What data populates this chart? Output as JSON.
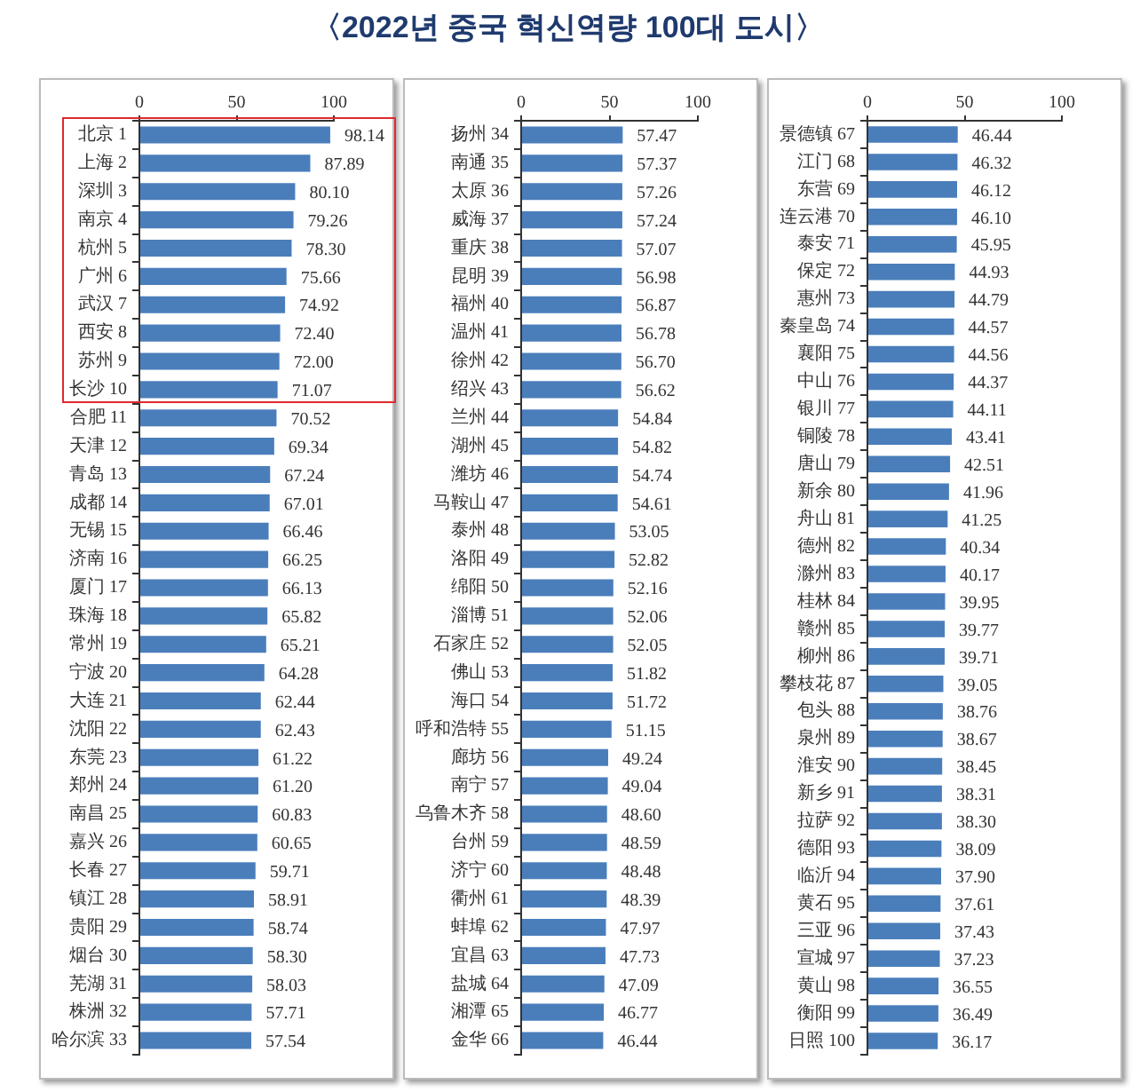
{
  "chart_data": [
    {
      "type": "bar",
      "orientation": "horizontal",
      "categories": [
        "北京 1",
        "上海 2",
        "深圳 3",
        "南京 4",
        "杭州 5",
        "广州 6",
        "武汉 7",
        "西安 8",
        "苏州 9",
        "长沙 10",
        "合肥 11",
        "天津 12",
        "青岛 13",
        "成都 14",
        "无锡 15",
        "济南 16",
        "厦门 17",
        "珠海 18",
        "常州 19",
        "宁波 20",
        "大连 21",
        "沈阳 22",
        "东莞 23",
        "郑州 24",
        "南昌 25",
        "嘉兴 26",
        "长春 27",
        "镇江 28",
        "贵阳 29",
        "烟台 30",
        "芜湖 31",
        "株洲 32",
        "哈尔滨 33"
      ],
      "values": [
        98.14,
        87.89,
        80.1,
        79.26,
        78.3,
        75.66,
        74.92,
        72.4,
        72.0,
        71.07,
        70.52,
        69.34,
        67.24,
        67.01,
        66.46,
        66.25,
        66.13,
        65.82,
        65.21,
        64.28,
        62.44,
        62.43,
        61.22,
        61.2,
        60.83,
        60.65,
        59.71,
        58.91,
        58.74,
        58.3,
        58.03,
        57.71,
        57.54
      ],
      "value_labels": [
        "98.14",
        "87.89",
        "80.10",
        "79.26",
        "78.30",
        "75.66",
        "74.92",
        "72.40",
        "72.00",
        "71.07",
        "70.52",
        "69.34",
        "67.24",
        "67.01",
        "66.46",
        "66.25",
        "66.13",
        "65.82",
        "65.21",
        "64.28",
        "62.44",
        "62.43",
        "61.22",
        "61.20",
        "60.83",
        "60.65",
        "59.71",
        "58.91",
        "58.74",
        "58.30",
        "58.03",
        "57.71",
        "57.54"
      ],
      "color": "#4a7ebb",
      "xlim": [
        0,
        100
      ],
      "xticks": [
        0,
        50,
        100
      ]
    },
    {
      "type": "bar",
      "orientation": "horizontal",
      "title": "〈2022년 중국 혁신역량 100대 도시〉",
      "categories": [
        "扬州 34",
        "南通 35",
        "太原 36",
        "威海 37",
        "重庆 38",
        "昆明 39",
        "福州 40",
        "温州 41",
        "徐州 42",
        "绍兴 43",
        "兰州 44",
        "湖州 45",
        "潍坊 46",
        "马鞍山 47",
        "泰州 48",
        "洛阳 49",
        "绵阳 50",
        "淄博 51",
        "石家庄 52",
        "佛山 53",
        "海口 54",
        "呼和浩特 55",
        "廊坊 56",
        "南宁 57",
        "乌鲁木齐 58",
        "台州 59",
        "济宁 60",
        "衢州 61",
        "蚌埠 62",
        "宜昌 63",
        "盐城 64",
        "湘潭 65",
        "金华 66"
      ],
      "values": [
        57.47,
        57.37,
        57.26,
        57.24,
        57.07,
        56.98,
        56.87,
        56.78,
        56.7,
        56.62,
        54.84,
        54.82,
        54.74,
        54.61,
        53.05,
        52.82,
        52.16,
        52.06,
        52.05,
        51.82,
        51.72,
        51.15,
        49.24,
        49.04,
        48.6,
        48.59,
        48.48,
        48.39,
        47.97,
        47.73,
        47.09,
        46.77,
        46.44
      ],
      "value_labels": [
        "57.47",
        "57.37",
        "57.26",
        "57.24",
        "57.07",
        "56.98",
        "56.87",
        "56.78",
        "56.70",
        "56.62",
        "54.84",
        "54.82",
        "54.74",
        "54.61",
        "53.05",
        "52.82",
        "52.16",
        "52.06",
        "52.05",
        "51.82",
        "51.72",
        "51.15",
        "49.24",
        "49.04",
        "48.60",
        "48.59",
        "48.48",
        "48.39",
        "47.97",
        "47.73",
        "47.09",
        "46.77",
        "46.44"
      ],
      "color": "#4a7ebb",
      "xlim": [
        0,
        100
      ],
      "xticks": [
        0,
        50,
        100
      ]
    },
    {
      "type": "bar",
      "orientation": "horizontal",
      "categories": [
        "景德镇 67",
        "江门 68",
        "东营 69",
        "连云港 70",
        "泰安 71",
        "保定 72",
        "惠州 73",
        "秦皇岛 74",
        "襄阳 75",
        "中山 76",
        "银川 77",
        "铜陵 78",
        "唐山 79",
        "新余 80",
        "舟山 81",
        "德州 82",
        "滁州 83",
        "桂林 84",
        "赣州 85",
        "柳州 86",
        "攀枝花 87",
        "包头 88",
        "泉州 89",
        "淮安 90",
        "新乡 91",
        "拉萨 92",
        "德阳 93",
        "临沂 94",
        "黄石 95",
        "三亚 96",
        "宣城 97",
        "黄山 98",
        "衡阳 99",
        "日照 100"
      ],
      "values": [
        46.44,
        46.32,
        46.12,
        46.1,
        45.95,
        44.93,
        44.79,
        44.57,
        44.56,
        44.37,
        44.11,
        43.41,
        42.51,
        41.96,
        41.25,
        40.34,
        40.17,
        39.95,
        39.77,
        39.71,
        39.05,
        38.76,
        38.67,
        38.45,
        38.31,
        38.3,
        38.09,
        37.9,
        37.61,
        37.43,
        37.23,
        36.55,
        36.49,
        36.17
      ],
      "value_labels": [
        "46.44",
        "46.32",
        "46.12",
        "46.10",
        "45.95",
        "44.93",
        "44.79",
        "44.57",
        "44.56",
        "44.37",
        "44.11",
        "43.41",
        "42.51",
        "41.96",
        "41.25",
        "40.34",
        "40.17",
        "39.95",
        "39.77",
        "39.71",
        "39.05",
        "38.76",
        "38.67",
        "38.45",
        "38.31",
        "38.30",
        "38.09",
        "37.90",
        "37.61",
        "37.43",
        "37.23",
        "36.55",
        "36.49",
        "36.17"
      ],
      "color": "#4a7ebb",
      "xlim": [
        0,
        100
      ],
      "xticks": [
        0,
        50,
        100
      ]
    }
  ]
}
